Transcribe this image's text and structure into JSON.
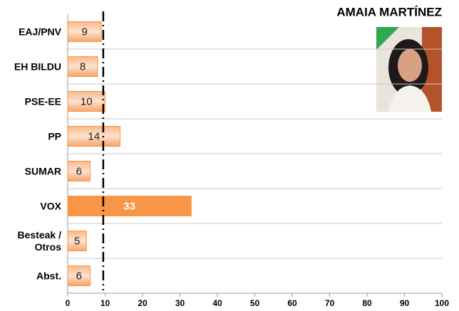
{
  "chart_data": {
    "type": "hbar",
    "title": "AMAIA MARTÍNEZ",
    "categories": [
      "EAJ/PNV",
      "EH BILDU",
      "PSE-EE",
      "PP",
      "SUMAR",
      "VOX",
      "Besteak / Otros",
      "Abst."
    ],
    "values": [
      9,
      8,
      10,
      14,
      6,
      33,
      5,
      6
    ],
    "color": "#f79646",
    "highlight_index": 5,
    "reference_value": 9.5,
    "xlim": [
      0,
      100
    ],
    "xticks": [
      0,
      10,
      20,
      30,
      40,
      50,
      60,
      70,
      80,
      90,
      100
    ]
  }
}
